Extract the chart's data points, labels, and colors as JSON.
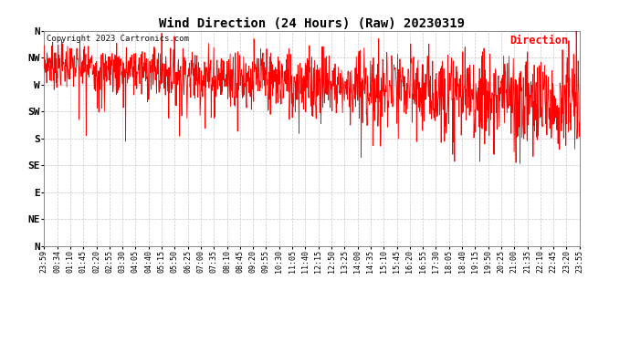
{
  "title": "Wind Direction (24 Hours) (Raw) 20230319",
  "copyright": "Copyright 2023 Cartronics.com",
  "legend_label": "Direction",
  "legend_color": "#ff0000",
  "copyright_color": "#111111",
  "title_color": "#000000",
  "line_color": "#ff0000",
  "background_color": "#ffffff",
  "grid_color": "#aaaaaa",
  "ytick_labels": [
    "N",
    "NW",
    "W",
    "SW",
    "S",
    "SE",
    "E",
    "NE",
    "N"
  ],
  "ytick_values": [
    360,
    315,
    270,
    225,
    180,
    135,
    90,
    45,
    0
  ],
  "ylim": [
    0,
    360
  ],
  "xtick_labels": [
    "23:59",
    "00:34",
    "01:10",
    "01:45",
    "02:20",
    "02:55",
    "03:30",
    "04:05",
    "04:40",
    "05:15",
    "05:50",
    "06:25",
    "07:00",
    "07:35",
    "08:10",
    "08:45",
    "09:20",
    "09:55",
    "10:30",
    "11:05",
    "11:40",
    "12:15",
    "12:50",
    "13:25",
    "14:00",
    "14:35",
    "15:10",
    "15:45",
    "16:20",
    "16:55",
    "17:30",
    "18:05",
    "18:40",
    "19:15",
    "19:50",
    "20:25",
    "21:00",
    "21:35",
    "22:10",
    "22:45",
    "23:20",
    "23:55"
  ],
  "num_points": 1440,
  "seed": 7
}
